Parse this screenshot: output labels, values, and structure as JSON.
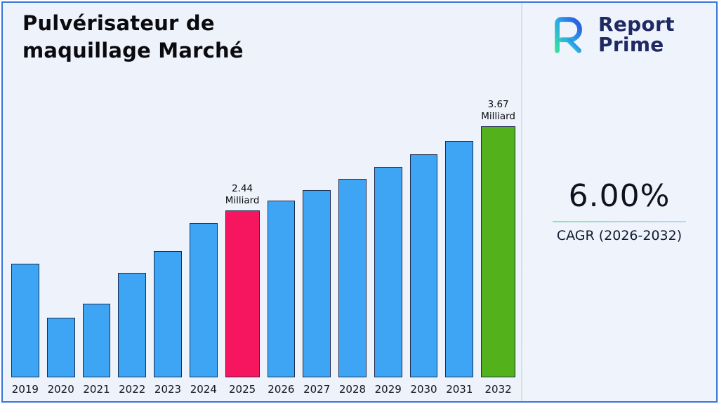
{
  "title": {
    "line1": "Pulvérisateur de",
    "line2": "maquillage Marché"
  },
  "logo": {
    "name": "Report Prime",
    "line1": "Report",
    "line2": "Prime"
  },
  "cagr": {
    "value": "6.00%",
    "label": "CAGR (2026-2032)"
  },
  "chart_data": {
    "type": "bar",
    "title": "Pulvérisateur de maquillage Marché",
    "categories": [
      "2019",
      "2020",
      "2021",
      "2022",
      "2023",
      "2024",
      "2025",
      "2026",
      "2027",
      "2028",
      "2029",
      "2030",
      "2031",
      "2032"
    ],
    "values": [
      1.66,
      0.87,
      1.08,
      1.53,
      1.85,
      2.26,
      2.44,
      2.59,
      2.74,
      2.9,
      3.08,
      3.26,
      3.46,
      3.67
    ],
    "unit": "Milliard",
    "ylim": [
      0,
      3.9
    ],
    "grid": false,
    "legend": "none",
    "annotations": [
      {
        "category": "2025",
        "value": "2.44",
        "unit": "Milliard"
      },
      {
        "category": "2032",
        "value": "3.67",
        "unit": "Milliard"
      }
    ],
    "colors": {
      "default": "#3da5f4",
      "2025": "#f6155f",
      "2032": "#53b11c",
      "border": "#1d2b4f"
    }
  }
}
